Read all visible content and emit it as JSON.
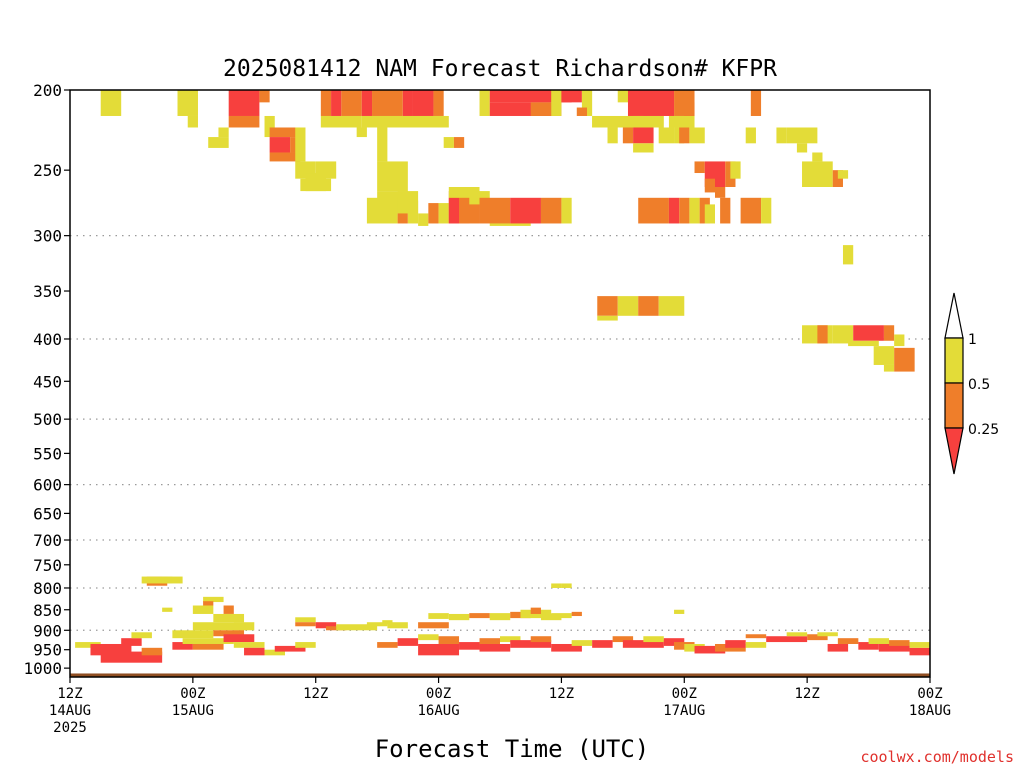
{
  "chart_data": {
    "type": "heatmap",
    "title": "2025081412 NAM Forecast Richardson# KFPR",
    "xlabel": "Forecast Time (UTC)",
    "ylabel": "",
    "credit": "coolwx.com/models",
    "y_scale": "log",
    "y_range": [
      1025,
      200
    ],
    "y_ticks": [
      "200",
      "250",
      "300",
      "350",
      "400",
      "450",
      "500",
      "550",
      "600",
      "650",
      "700",
      "750",
      "800",
      "850",
      "900",
      "950",
      "1000"
    ],
    "y_gridlines": [
      300,
      400,
      500,
      600,
      700,
      800,
      900
    ],
    "x_range_hours": [
      0,
      84
    ],
    "x_ticks": [
      {
        "hour": 0,
        "line1": "12Z",
        "line2": "14AUG",
        "line3": "2025"
      },
      {
        "hour": 12,
        "line1": "00Z",
        "line2": "15AUG",
        "line3": ""
      },
      {
        "hour": 24,
        "line1": "12Z",
        "line2": "",
        "line3": ""
      },
      {
        "hour": 36,
        "line1": "00Z",
        "line2": "16AUG",
        "line3": ""
      },
      {
        "hour": 48,
        "line1": "12Z",
        "line2": "",
        "line3": ""
      },
      {
        "hour": 60,
        "line1": "00Z",
        "line2": "17AUG",
        "line3": ""
      },
      {
        "hour": 72,
        "line1": "12Z",
        "line2": "",
        "line3": ""
      },
      {
        "hour": 84,
        "line1": "00Z",
        "line2": "18AUG",
        "line3": ""
      }
    ],
    "colorbar": {
      "labels": [
        "1",
        "0.5",
        "0.25"
      ],
      "colors": {
        "yellow": "#e3dc38",
        "orange": "#ef7e2a",
        "red": "#f7403e",
        "white": "#ffffff",
        "ground": "#8f4e22"
      }
    },
    "categories": {
      "y": "0.5–1",
      "o": "0.25–0.5",
      "r": "<0.25"
    },
    "ground_pressure": 1015,
    "cells": [
      [
        "y",
        3,
        5,
        200,
        215
      ],
      [
        "y",
        10.5,
        12.5,
        200,
        215
      ],
      [
        "y",
        11.5,
        12.5,
        215,
        222
      ],
      [
        "r",
        15.5,
        18.5,
        200,
        215
      ],
      [
        "o",
        15.5,
        18.5,
        215,
        222
      ],
      [
        "o",
        18.5,
        19.5,
        200,
        207
      ],
      [
        "y",
        13.5,
        15.5,
        228,
        235
      ],
      [
        "y",
        14.5,
        15.5,
        222,
        228
      ],
      [
        "y",
        19,
        20,
        215,
        228
      ],
      [
        "o",
        19.5,
        22.5,
        222,
        228
      ],
      [
        "r",
        19.5,
        21.5,
        228,
        238
      ],
      [
        "o",
        21.5,
        22.5,
        228,
        238
      ],
      [
        "o",
        19.5,
        22.5,
        238,
        244
      ],
      [
        "y",
        22,
        23,
        222,
        244
      ],
      [
        "y",
        22,
        24,
        244,
        256
      ],
      [
        "y",
        23,
        25,
        252,
        265
      ],
      [
        "y",
        24,
        26,
        244,
        256
      ],
      [
        "y",
        22.5,
        25.5,
        256,
        265
      ],
      [
        "o",
        24.5,
        25.5,
        200,
        215
      ],
      [
        "r",
        25.5,
        26.5,
        200,
        215
      ],
      [
        "o",
        26.5,
        28.5,
        200,
        215
      ],
      [
        "y",
        24.5,
        28.5,
        215,
        222
      ],
      [
        "y",
        28,
        29,
        222,
        228
      ],
      [
        "r",
        28.5,
        29.5,
        200,
        215
      ],
      [
        "o",
        29.5,
        31.5,
        200,
        215
      ],
      [
        "y",
        28.5,
        31.5,
        215,
        222
      ],
      [
        "r",
        32.5,
        33.5,
        200,
        215
      ],
      [
        "o",
        31.5,
        32.5,
        200,
        215
      ],
      [
        "r",
        33.5,
        35.5,
        200,
        215
      ],
      [
        "o",
        35.5,
        36.5,
        200,
        215
      ],
      [
        "y",
        31.5,
        36.5,
        215,
        222
      ],
      [
        "y",
        36,
        37,
        215,
        222
      ],
      [
        "y",
        30,
        31,
        222,
        244
      ],
      [
        "y",
        30,
        33,
        244,
        265
      ],
      [
        "y",
        30,
        34,
        265,
        282
      ],
      [
        "y",
        29,
        32,
        270,
        290
      ],
      [
        "y",
        32,
        33,
        265,
        282
      ],
      [
        "o",
        32,
        33,
        282,
        290
      ],
      [
        "y",
        33,
        34,
        272,
        290
      ],
      [
        "y",
        34,
        35,
        282,
        292
      ],
      [
        "o",
        35,
        36,
        274,
        290
      ],
      [
        "y",
        36,
        37,
        274,
        290
      ],
      [
        "o",
        37,
        38,
        265,
        290
      ],
      [
        "r",
        37,
        39,
        270,
        290
      ],
      [
        "o",
        38,
        40,
        265,
        290
      ],
      [
        "y",
        37,
        40,
        262,
        270
      ],
      [
        "y",
        39,
        41,
        265,
        275
      ],
      [
        "o",
        40,
        43,
        270,
        290
      ],
      [
        "r",
        43,
        46,
        270,
        290
      ],
      [
        "o",
        46,
        48,
        270,
        290
      ],
      [
        "y",
        48,
        49,
        270,
        290
      ],
      [
        "y",
        41,
        45,
        290,
        292
      ],
      [
        "y",
        36.5,
        37.5,
        228,
        235
      ],
      [
        "o",
        37.5,
        38.5,
        228,
        235
      ],
      [
        "y",
        40,
        41,
        200,
        215
      ],
      [
        "r",
        41,
        49,
        200,
        207
      ],
      [
        "r",
        41,
        48,
        207,
        215
      ],
      [
        "o",
        45,
        47,
        207,
        215
      ],
      [
        "y",
        47,
        48,
        200,
        215
      ],
      [
        "r",
        48,
        50,
        200,
        207
      ],
      [
        "y",
        50,
        51,
        200,
        215
      ],
      [
        "o",
        49.5,
        50.5,
        210,
        215
      ],
      [
        "y",
        51,
        52,
        215,
        222
      ],
      [
        "y",
        52.5,
        53.5,
        222,
        232
      ],
      [
        "y",
        53.5,
        55.5,
        200,
        207
      ],
      [
        "r",
        54.5,
        59,
        200,
        215
      ],
      [
        "o",
        59,
        61,
        200,
        215
      ],
      [
        "y",
        51,
        56,
        215,
        222
      ],
      [
        "y",
        55,
        58,
        215,
        222
      ],
      [
        "y",
        58.5,
        61,
        215,
        222
      ],
      [
        "o",
        60,
        61,
        207,
        215
      ],
      [
        "y",
        59,
        60,
        222,
        232
      ],
      [
        "o",
        54,
        55,
        222,
        232
      ],
      [
        "r",
        55,
        57,
        222,
        232
      ],
      [
        "y",
        55,
        57,
        232,
        238
      ],
      [
        "y",
        57.5,
        59,
        222,
        232
      ],
      [
        "o",
        59.5,
        60.5,
        222,
        232
      ],
      [
        "y",
        60.5,
        62,
        222,
        232
      ],
      [
        "o",
        61,
        62,
        244,
        252
      ],
      [
        "r",
        62,
        64,
        244,
        262
      ],
      [
        "o",
        64,
        65,
        244,
        262
      ],
      [
        "y",
        64.5,
        65.5,
        244,
        256
      ],
      [
        "o",
        62,
        63,
        256,
        266
      ],
      [
        "o",
        63,
        64,
        262,
        270
      ],
      [
        "o",
        55.5,
        58.5,
        270,
        290
      ],
      [
        "r",
        58.5,
        59.5,
        270,
        290
      ],
      [
        "o",
        59.5,
        60.5,
        270,
        290
      ],
      [
        "y",
        60.5,
        61.5,
        270,
        290
      ],
      [
        "o",
        61.5,
        62.5,
        270,
        290
      ],
      [
        "y",
        62,
        63,
        275,
        290
      ],
      [
        "o",
        63.5,
        64.5,
        270,
        290
      ],
      [
        "o",
        65.5,
        67.5,
        270,
        290
      ],
      [
        "y",
        67.5,
        68.5,
        270,
        290
      ],
      [
        "o",
        66.5,
        67.5,
        200,
        215
      ],
      [
        "y",
        66,
        67,
        222,
        232
      ],
      [
        "y",
        69,
        70,
        222,
        232
      ],
      [
        "y",
        70,
        73,
        222,
        232
      ],
      [
        "y",
        71,
        72,
        232,
        238
      ],
      [
        "y",
        71.5,
        74.5,
        244,
        262
      ],
      [
        "y",
        72.5,
        73.5,
        238,
        244
      ],
      [
        "o",
        74.5,
        75.5,
        250,
        262
      ],
      [
        "y",
        75,
        76,
        250,
        256
      ],
      [
        "y",
        75.5,
        76.5,
        308,
        325
      ],
      [
        "o",
        51.5,
        53.5,
        355,
        375
      ],
      [
        "y",
        53.5,
        55.5,
        355,
        375
      ],
      [
        "o",
        55.5,
        57.5,
        355,
        375
      ],
      [
        "y",
        57.5,
        60,
        355,
        375
      ],
      [
        "y",
        51.5,
        53.5,
        375,
        380
      ],
      [
        "y",
        71.5,
        74.5,
        385,
        405
      ],
      [
        "o",
        73,
        74,
        385,
        405
      ],
      [
        "y",
        74.5,
        76.5,
        385,
        405
      ],
      [
        "r",
        76.5,
        79.5,
        385,
        402
      ],
      [
        "y",
        76,
        79,
        402,
        408
      ],
      [
        "o",
        79.5,
        80.5,
        385,
        402
      ],
      [
        "y",
        80.5,
        81.5,
        395,
        408
      ],
      [
        "y",
        78.5,
        80.5,
        408,
        430
      ],
      [
        "y",
        79.5,
        80.5,
        430,
        438
      ],
      [
        "o",
        80.5,
        82.5,
        410,
        438
      ],
      [
        "o",
        7.5,
        9.5,
        775,
        795
      ],
      [
        "y",
        7,
        10,
        775,
        790
      ],
      [
        "y",
        9,
        11,
        775,
        790
      ],
      [
        "y",
        13,
        15,
        820,
        832
      ],
      [
        "o",
        13,
        14,
        830,
        840
      ],
      [
        "y",
        12,
        14,
        840,
        860
      ],
      [
        "o",
        15,
        16,
        840,
        860
      ],
      [
        "y",
        14,
        17,
        860,
        880
      ],
      [
        "y",
        16,
        18,
        880,
        900
      ],
      [
        "y",
        12,
        17,
        880,
        900
      ],
      [
        "y",
        9,
        10,
        845,
        855
      ],
      [
        "y",
        22,
        24,
        868,
        880
      ],
      [
        "o",
        22,
        24,
        880,
        890
      ],
      [
        "r",
        24,
        26,
        880,
        895
      ],
      [
        "o",
        25,
        27,
        890,
        900
      ],
      [
        "y",
        26,
        30,
        885,
        900
      ],
      [
        "y",
        29,
        31,
        880,
        890
      ],
      [
        "y",
        30.5,
        31.5,
        875,
        885
      ],
      [
        "y",
        35,
        37,
        858,
        872
      ],
      [
        "y",
        37,
        39,
        860,
        875
      ],
      [
        "o",
        39,
        41,
        858,
        870
      ],
      [
        "y",
        41,
        43,
        858,
        875
      ],
      [
        "o",
        43,
        45,
        855,
        870
      ],
      [
        "y",
        44,
        47,
        850,
        870
      ],
      [
        "o",
        45,
        46,
        845,
        860
      ],
      [
        "y",
        46,
        48,
        860,
        875
      ],
      [
        "y",
        47,
        49,
        858,
        870
      ],
      [
        "o",
        49,
        50,
        855,
        865
      ],
      [
        "y",
        47,
        48,
        790,
        800
      ],
      [
        "y",
        48,
        49,
        790,
        800
      ],
      [
        "y",
        59,
        60,
        850,
        860
      ],
      [
        "o",
        34,
        37,
        880,
        895
      ],
      [
        "y",
        31,
        33,
        880,
        895
      ],
      [
        "y",
        0.5,
        3,
        930,
        945
      ],
      [
        "r",
        2,
        6,
        935,
        965
      ],
      [
        "r",
        3,
        9,
        955,
        985
      ],
      [
        "o",
        7,
        9,
        945,
        965
      ],
      [
        "r",
        5,
        7,
        920,
        940
      ],
      [
        "y",
        6,
        8,
        905,
        920
      ],
      [
        "r",
        10,
        12,
        930,
        950
      ],
      [
        "y",
        10,
        14,
        900,
        920
      ],
      [
        "y",
        11,
        16,
        920,
        935
      ],
      [
        "o",
        14,
        17,
        900,
        915
      ],
      [
        "r",
        15,
        18,
        910,
        930
      ],
      [
        "y",
        16,
        19,
        930,
        945
      ],
      [
        "o",
        12,
        15,
        935,
        950
      ],
      [
        "r",
        17,
        19,
        945,
        965
      ],
      [
        "y",
        19,
        21,
        950,
        965
      ],
      [
        "r",
        20,
        23,
        940,
        955
      ],
      [
        "y",
        22,
        24,
        930,
        945
      ],
      [
        "o",
        30,
        32,
        930,
        945
      ],
      [
        "r",
        32,
        34,
        920,
        940
      ],
      [
        "y",
        34,
        36,
        910,
        925
      ],
      [
        "r",
        34,
        38,
        935,
        965
      ],
      [
        "o",
        36,
        38,
        915,
        935
      ],
      [
        "r",
        38,
        40,
        930,
        950
      ],
      [
        "o",
        40,
        42,
        920,
        935
      ],
      [
        "r",
        40,
        43,
        935,
        955
      ],
      [
        "y",
        42,
        44,
        915,
        930
      ],
      [
        "r",
        43,
        47,
        925,
        945
      ],
      [
        "o",
        45,
        47,
        915,
        930
      ],
      [
        "r",
        47,
        50,
        935,
        955
      ],
      [
        "y",
        49,
        51,
        925,
        940
      ],
      [
        "r",
        51,
        53,
        925,
        945
      ],
      [
        "o",
        53,
        55,
        915,
        930
      ],
      [
        "r",
        54,
        58,
        925,
        945
      ],
      [
        "y",
        56,
        58,
        915,
        930
      ],
      [
        "r",
        58,
        60,
        920,
        940
      ],
      [
        "o",
        59,
        61,
        930,
        950
      ],
      [
        "y",
        60,
        62,
        935,
        955
      ],
      [
        "r",
        61,
        64,
        940,
        960
      ],
      [
        "o",
        63,
        66,
        935,
        955
      ],
      [
        "r",
        64,
        66,
        925,
        945
      ],
      [
        "y",
        66,
        68,
        930,
        945
      ],
      [
        "o",
        66,
        68,
        910,
        920
      ],
      [
        "r",
        68,
        72,
        915,
        930
      ],
      [
        "y",
        70,
        72,
        905,
        915
      ],
      [
        "o",
        72,
        74,
        910,
        925
      ],
      [
        "y",
        73,
        75,
        905,
        915
      ],
      [
        "r",
        74,
        76,
        935,
        955
      ],
      [
        "o",
        75,
        77,
        920,
        935
      ],
      [
        "r",
        77,
        79,
        930,
        950
      ],
      [
        "y",
        78,
        80,
        920,
        935
      ],
      [
        "r",
        79,
        82,
        935,
        955
      ],
      [
        "o",
        80,
        82,
        925,
        940
      ],
      [
        "r",
        82,
        84,
        945,
        965
      ],
      [
        "y",
        82,
        84,
        930,
        945
      ]
    ]
  }
}
